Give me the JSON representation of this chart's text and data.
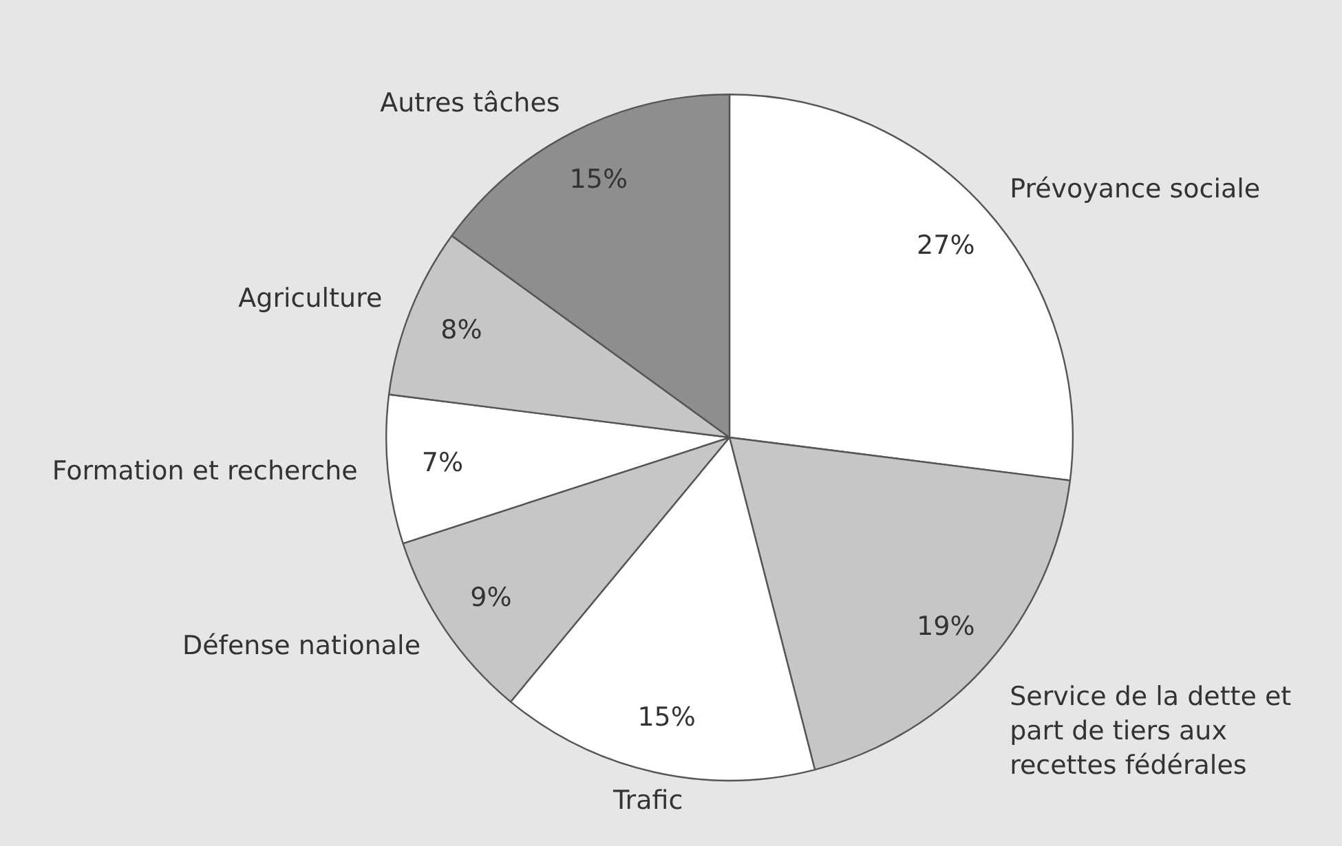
{
  "chart_data": {
    "type": "pie",
    "categories": [
      "Prévoyance sociale",
      "Service de la dette et part de tiers aux recettes fédérales",
      "Trafic",
      "Défense nationale",
      "Formation et recherche",
      "Agriculture",
      "Autres tâches"
    ],
    "values": [
      27,
      19,
      15,
      9,
      7,
      8,
      15
    ],
    "colors": [
      "#ffffff",
      "#c6c6c6",
      "#ffffff",
      "#c6c6c6",
      "#ffffff",
      "#c6c6c6",
      "#8e8e8e"
    ],
    "value_labels": [
      "27%",
      "19%",
      "15%",
      "9%",
      "7%",
      "8%",
      "15%"
    ],
    "legend": false
  }
}
